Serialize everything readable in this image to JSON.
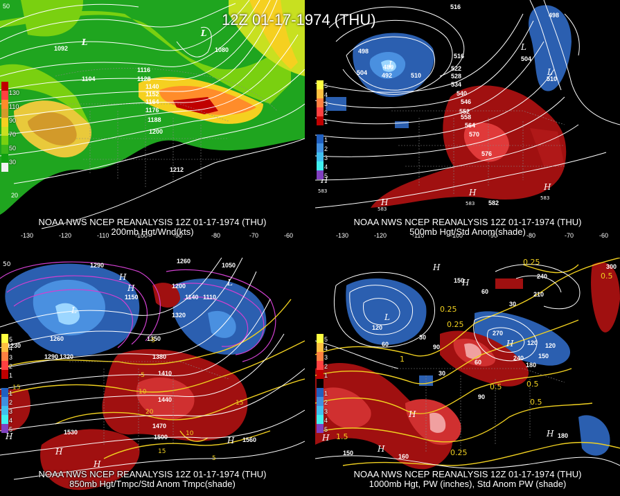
{
  "title": "12Z 01-17-1974 (THU)",
  "panels": [
    {
      "id": "p1",
      "caption_top": "NOAA NWS NCEP REANALYSIS 12Z 01-17-1974 (THU)",
      "caption_bottom": "200mb Hgt/Wnd(kts)",
      "colorbar_labels": [
        "130",
        "110",
        "90",
        "70",
        "50",
        "30"
      ],
      "colorbar_colors": [
        "#c00000",
        "#ff4040",
        "#ff8c2a",
        "#d29a2a",
        "#f5d020",
        "#c8e020",
        "#7ad010",
        "#3cb81a",
        "#10a010",
        "#f0f0f0"
      ],
      "contour_labels": [
        "1092",
        "1104",
        "1080",
        "1116",
        "1128",
        "1140",
        "1152",
        "1164",
        "1176",
        "1188",
        "1200",
        "1212"
      ],
      "hl_labels": [
        "L",
        "L"
      ],
      "lon_labels": [
        "-130",
        "-120",
        "-110",
        "-100",
        "-90",
        "-80",
        "-70",
        "-60"
      ],
      "lat_labels": [
        "50",
        "20"
      ]
    },
    {
      "id": "p2",
      "caption_top": "NOAA NWS NCEP REANALYSIS 12Z 01-17-1974 (THU)",
      "caption_bottom": "500mb Hgt/Std Anom(shade)",
      "colorbar_labels": [
        "5",
        "4",
        "3",
        "2",
        "1",
        "",
        "1",
        "2",
        "3",
        "4",
        "5"
      ],
      "colorbar_colors": [
        "#ffff40",
        "#ffc040",
        "#ff8040",
        "#ff4040",
        "#c00000",
        "#000000",
        "#2060c0",
        "#4090e0",
        "#40c0f0",
        "#40f0f0",
        "#8040c0"
      ],
      "contour_labels": [
        "498",
        "504",
        "486",
        "492",
        "510",
        "516",
        "522",
        "528",
        "534",
        "540",
        "546",
        "552",
        "558",
        "564",
        "570",
        "576",
        "582",
        "516",
        "504",
        "510",
        "498"
      ],
      "hl_labels": [
        "L",
        "L",
        "L",
        "H",
        "H",
        "H",
        "H"
      ],
      "small_labels": [
        "583",
        "583",
        "583",
        "583"
      ],
      "lon_labels": [
        "-130",
        "-120",
        "-110",
        "-100",
        "-90",
        "-80",
        "-70",
        "-60"
      ]
    },
    {
      "id": "p3",
      "caption_top": "NOAA NWS NCEP REANALYSIS 12Z 01-17-1974 (THU)",
      "caption_bottom": "850mb Hgt/Tmpc/Std Anom Tmpc(shade)",
      "colorbar_labels": [
        "5",
        "4",
        "3",
        "2",
        "1",
        "",
        "1",
        "2",
        "3",
        "4",
        "5"
      ],
      "contour_labels": [
        "1260",
        "1050",
        "1290",
        "1200",
        "1150",
        "1140",
        "1110",
        "1320",
        "1260",
        "1230",
        "1290",
        "1320",
        "1350",
        "1380",
        "1410",
        "1440",
        "1470",
        "1500",
        "1530",
        "1560",
        "-5",
        "-5",
        "15",
        "10",
        "20",
        "15",
        "10",
        "15",
        "5"
      ],
      "hl_labels": [
        "L",
        "L",
        "H",
        "H",
        "H",
        "H",
        "H",
        "H"
      ],
      "lon_labels": [
        "-130",
        "-120",
        "-110",
        "-100",
        "-90",
        "-80",
        "-70",
        "-60"
      ],
      "lat_labels": [
        "50"
      ]
    },
    {
      "id": "p4",
      "caption_top": "NOAA NWS NCEP REANALYSIS 12Z 01-17-1974 (THU)",
      "caption_bottom": "1000mb Hgt, PW (inches), Std Anom PW (shade)",
      "colorbar_labels": [
        "5",
        "4",
        "3",
        "2",
        "1",
        "",
        "1",
        "2",
        "3",
        "4",
        "5"
      ],
      "contour_labels": [
        "300",
        "240",
        "210",
        "0.25",
        "0.5",
        "150",
        "60",
        "30",
        "120",
        "0.25",
        "180",
        "240",
        "270",
        "150",
        "120",
        "90",
        "0.5",
        "0.5",
        "0.25",
        "1.5",
        "150",
        "160",
        "180",
        "0.5",
        "30",
        "60",
        "90",
        "120",
        "0.25",
        "1",
        "60",
        "30"
      ],
      "hl_labels": [
        "H",
        "H",
        "H",
        "H",
        "H",
        "L",
        "H",
        "H"
      ],
      "lon_labels": [
        "-130",
        "-120",
        "-110",
        "-100",
        "-90",
        "-80",
        "-70",
        "-60"
      ]
    }
  ]
}
